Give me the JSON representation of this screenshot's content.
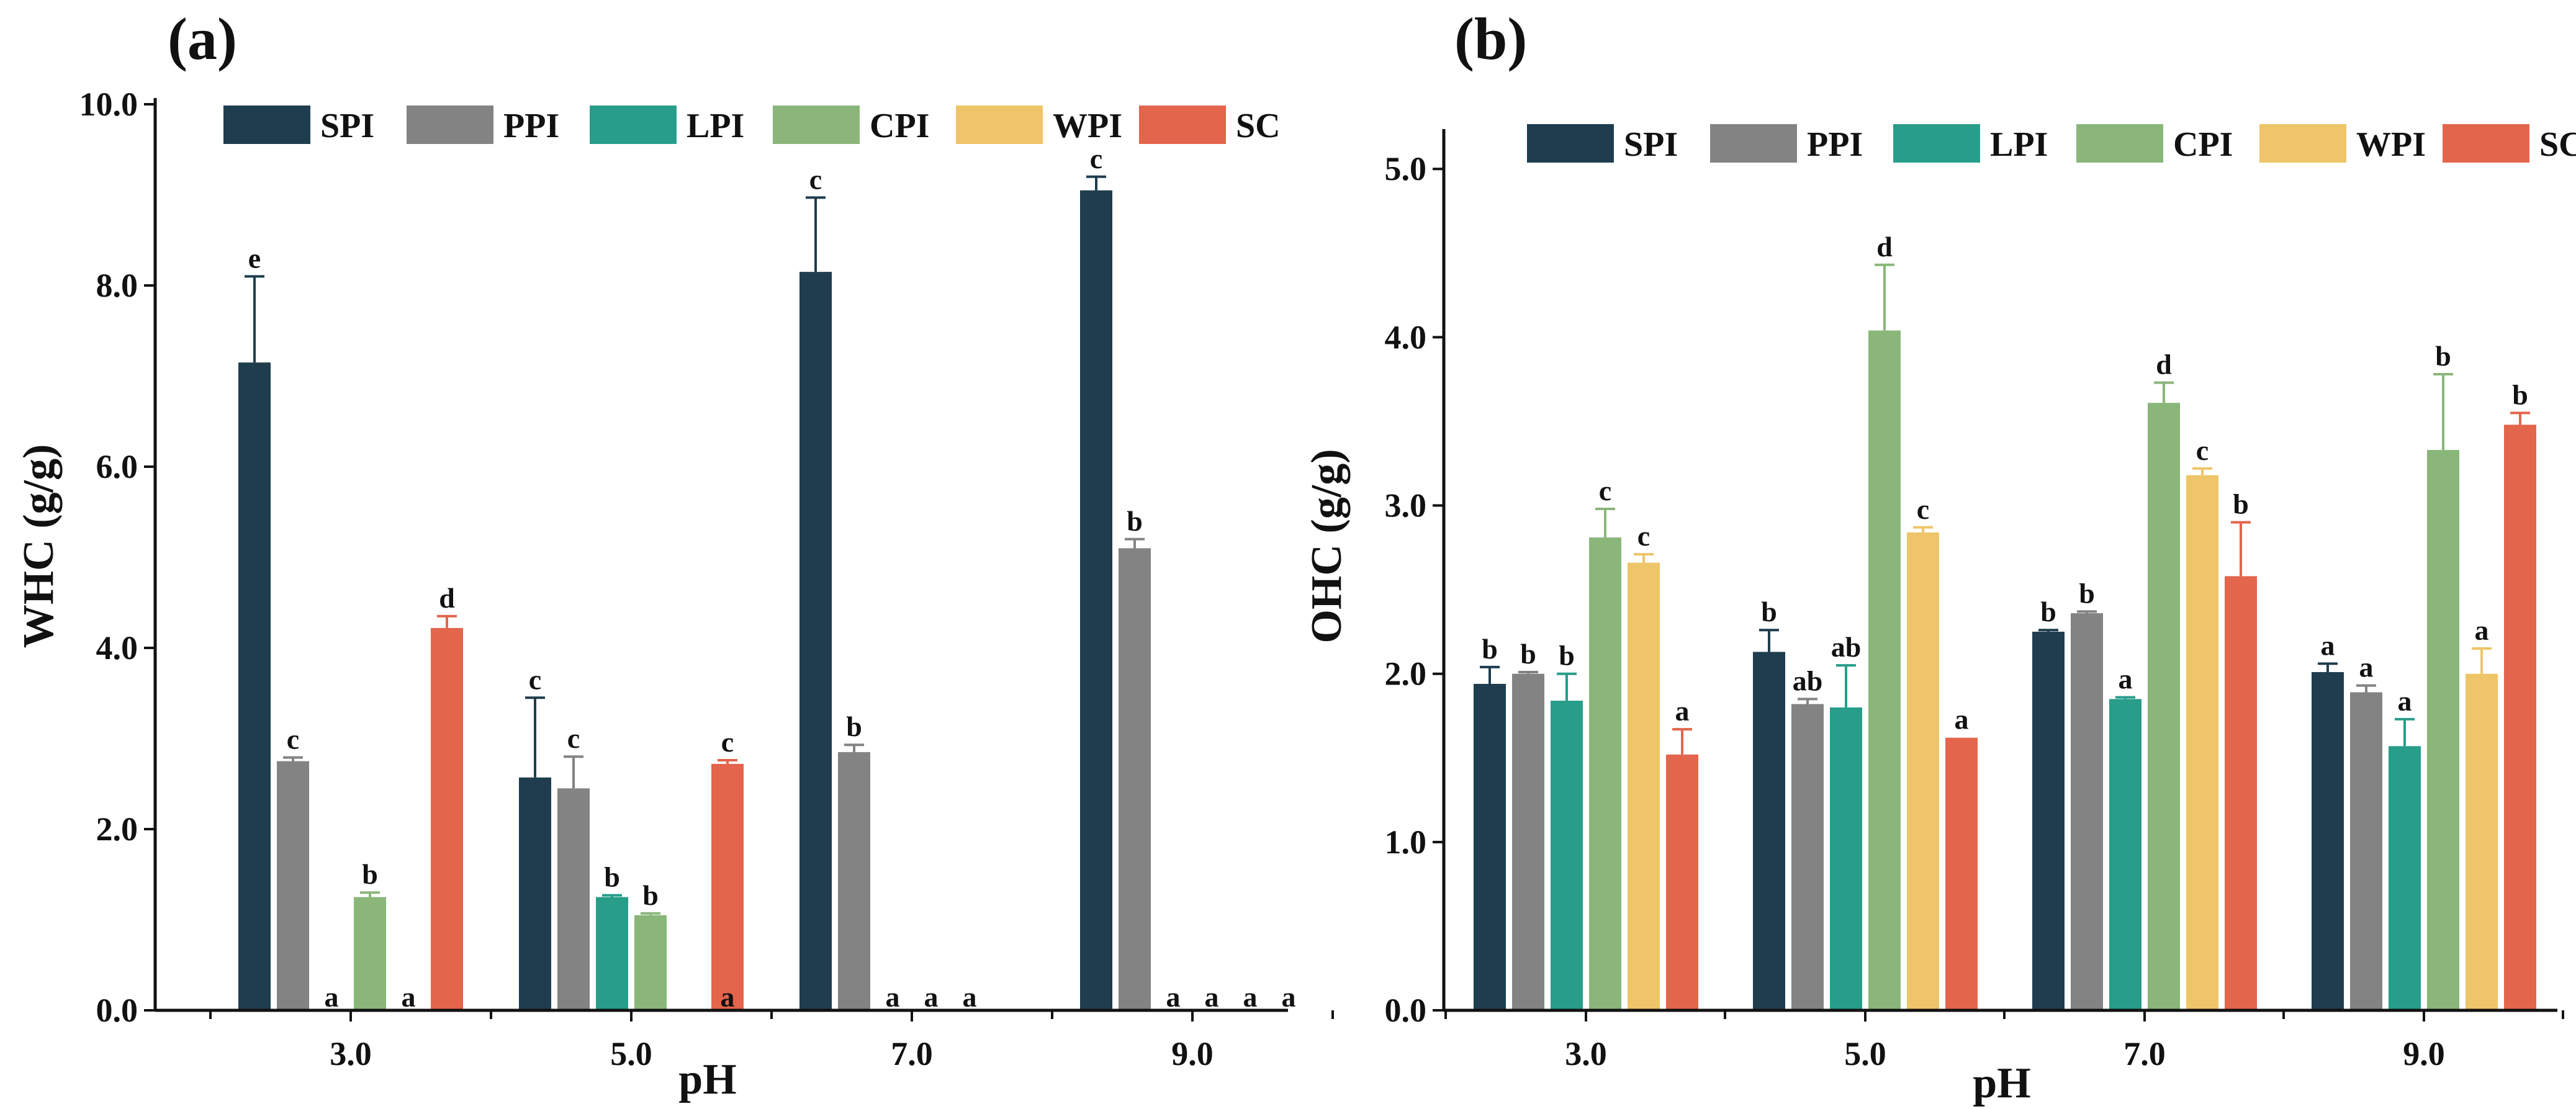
{
  "chart_data": [
    {
      "type": "bar",
      "panel_label": "(a)",
      "ylabel": "WHC (g/g)",
      "xlabel": "pH",
      "ylim": [
        0,
        10
      ],
      "yticks": [
        "0.0",
        "2.0",
        "4.0",
        "6.0",
        "8.0",
        "10.0"
      ],
      "categories": [
        "3.0",
        "5.0",
        "7.0",
        "9.0"
      ],
      "legend_position": "top",
      "series": [
        {
          "name": "SPI",
          "color": "#1f3d4f",
          "values": [
            7.15,
            2.57,
            8.15,
            9.05
          ],
          "errors": [
            0.95,
            0.88,
            0.82,
            0.15
          ],
          "letters": [
            "e",
            "c",
            "c",
            "c"
          ]
        },
        {
          "name": "PPI",
          "color": "#838383",
          "values": [
            2.75,
            2.45,
            2.85,
            5.1
          ],
          "errors": [
            0.04,
            0.35,
            0.08,
            0.1
          ],
          "letters": [
            "c",
            "c",
            "b",
            "b"
          ]
        },
        {
          "name": "LPI",
          "color": "#279d8a",
          "values": [
            0,
            1.25,
            0,
            0
          ],
          "errors": [
            0,
            0.02,
            0,
            0
          ],
          "letters": [
            "a",
            "b",
            "a",
            "a"
          ]
        },
        {
          "name": "CPI",
          "color": "#8ab67a",
          "values": [
            1.25,
            1.05,
            0,
            0
          ],
          "errors": [
            0.05,
            0.02,
            0,
            0
          ],
          "letters": [
            "b",
            "b",
            "a",
            "a"
          ]
        },
        {
          "name": "WPI",
          "color": "#eec568",
          "values": [
            0,
            0,
            0,
            0
          ],
          "errors": [
            0,
            0,
            0,
            0
          ],
          "letters": [
            "a",
            "",
            "a",
            "a"
          ]
        },
        {
          "name": "SC",
          "color": "#e3654c",
          "values": [
            4.22,
            2.72,
            0,
            0
          ],
          "errors": [
            0.13,
            0.04,
            0,
            0
          ],
          "letters": [
            "d",
            "c",
            "",
            ""
          ]
        }
      ],
      "bottom_letters": [
        {
          "category": "5.0",
          "letter": "a"
        },
        {
          "category": "9.0",
          "letter": "a"
        }
      ]
    },
    {
      "type": "bar",
      "panel_label": "(b)",
      "ylabel": "OHC (g/g)",
      "xlabel": "pH",
      "ylim": [
        0,
        5.2
      ],
      "yticks": [
        "0.0",
        "1.0",
        "2.0",
        "3.0",
        "4.0",
        "5.0"
      ],
      "categories": [
        "3.0",
        "5.0",
        "7.0",
        "9.0"
      ],
      "legend_position": "top",
      "series": [
        {
          "name": "SPI",
          "color": "#1f3d4f",
          "values": [
            1.94,
            2.13,
            2.25,
            2.01
          ],
          "errors": [
            0.1,
            0.13,
            0.01,
            0.05
          ],
          "letters": [
            "b",
            "b",
            "b",
            "a"
          ]
        },
        {
          "name": "PPI",
          "color": "#838383",
          "values": [
            2.0,
            1.82,
            2.36,
            1.89
          ],
          "errors": [
            0.01,
            0.03,
            0.01,
            0.04
          ],
          "letters": [
            "b",
            "ab",
            "b",
            "a"
          ]
        },
        {
          "name": "LPI",
          "color": "#279d8a",
          "values": [
            1.84,
            1.8,
            1.85,
            1.57
          ],
          "errors": [
            0.16,
            0.25,
            0.01,
            0.16
          ],
          "letters": [
            "b",
            "ab",
            "a",
            "a"
          ]
        },
        {
          "name": "CPI",
          "color": "#8ab67a",
          "values": [
            2.81,
            4.04,
            3.61,
            3.33
          ],
          "errors": [
            0.17,
            0.39,
            0.12,
            0.45
          ],
          "letters": [
            "c",
            "d",
            "d",
            "b"
          ]
        },
        {
          "name": "WPI",
          "color": "#eec568",
          "values": [
            2.66,
            2.84,
            3.18,
            2.0
          ],
          "errors": [
            0.05,
            0.03,
            0.04,
            0.15
          ],
          "letters": [
            "c",
            "c",
            "c",
            "a"
          ]
        },
        {
          "name": "SC",
          "color": "#e3654c",
          "values": [
            1.52,
            1.62,
            2.58,
            3.48
          ],
          "errors": [
            0.15,
            0.0,
            0.32,
            0.07
          ],
          "letters": [
            "a",
            "a",
            "b",
            "b"
          ]
        }
      ]
    }
  ]
}
